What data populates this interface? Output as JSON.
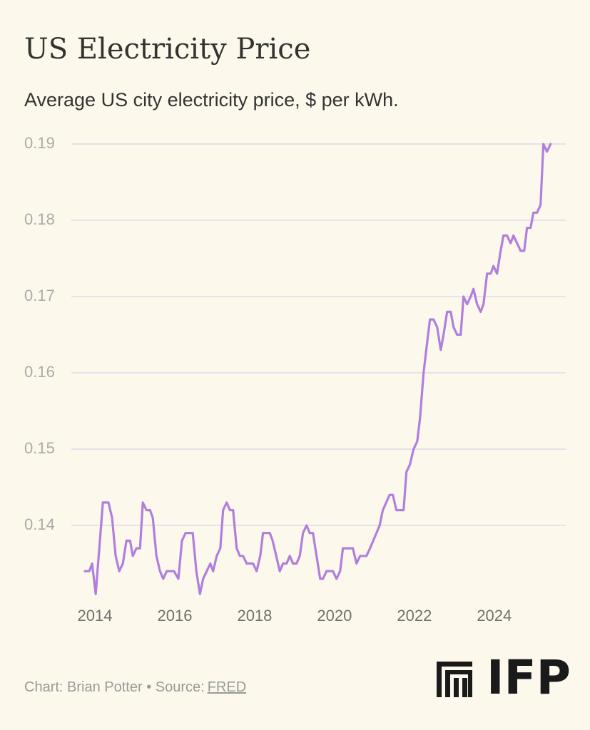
{
  "chart_data": {
    "type": "line",
    "title": "US Electricity Price",
    "subtitle": "Average US city electricity price, $ per kWh.",
    "x": [
      2013.75,
      2013.86,
      2013.93,
      2014.02,
      2014.11,
      2014.2,
      2014.34,
      2014.43,
      2014.52,
      2014.61,
      2014.7,
      2014.79,
      2014.88,
      2014.95,
      2015.04,
      2015.13,
      2015.2,
      2015.29,
      2015.38,
      2015.45,
      2015.54,
      2015.63,
      2015.71,
      2015.8,
      2015.98,
      2016.09,
      2016.18,
      2016.27,
      2016.45,
      2016.54,
      2016.63,
      2016.71,
      2016.8,
      2016.89,
      2016.96,
      2017.05,
      2017.14,
      2017.21,
      2017.3,
      2017.38,
      2017.46,
      2017.55,
      2017.63,
      2017.71,
      2017.8,
      2017.96,
      2018.05,
      2018.14,
      2018.21,
      2018.38,
      2018.45,
      2018.54,
      2018.63,
      2018.71,
      2018.8,
      2018.88,
      2018.96,
      2019.05,
      2019.13,
      2019.21,
      2019.3,
      2019.38,
      2019.46,
      2019.55,
      2019.64,
      2019.71,
      2019.8,
      2019.96,
      2020.05,
      2020.14,
      2020.21,
      2020.46,
      2020.55,
      2020.64,
      2020.8,
      2020.89,
      2021.13,
      2021.21,
      2021.38,
      2021.46,
      2021.55,
      2021.73,
      2021.8,
      2021.89,
      2021.98,
      2022.07,
      2022.14,
      2022.23,
      2022.32,
      2022.39,
      2022.48,
      2022.57,
      2022.66,
      2022.73,
      2022.82,
      2022.91,
      2022.98,
      2023.07,
      2023.16,
      2023.23,
      2023.32,
      2023.41,
      2023.48,
      2023.57,
      2023.66,
      2023.73,
      2023.82,
      2023.91,
      2023.98,
      2024.07,
      2024.16,
      2024.23,
      2024.32,
      2024.41,
      2024.48,
      2024.57,
      2024.66,
      2024.75,
      2024.82,
      2024.91,
      2024.98,
      2025.07,
      2025.16,
      2025.23,
      2025.32,
      2025.41
    ],
    "series": [
      {
        "color": "#b07fde",
        "values": [
          0.134,
          0.134,
          0.135,
          0.131,
          0.137,
          0.143,
          0.143,
          0.141,
          0.136,
          0.134,
          0.135,
          0.138,
          0.138,
          0.136,
          0.137,
          0.137,
          0.143,
          0.142,
          0.142,
          0.141,
          0.136,
          0.134,
          0.133,
          0.134,
          0.134,
          0.133,
          0.138,
          0.139,
          0.139,
          0.134,
          0.131,
          0.133,
          0.134,
          0.135,
          0.134,
          0.136,
          0.137,
          0.142,
          0.143,
          0.142,
          0.142,
          0.137,
          0.136,
          0.136,
          0.135,
          0.135,
          0.134,
          0.136,
          0.139,
          0.139,
          0.138,
          0.136,
          0.134,
          0.135,
          0.135,
          0.136,
          0.135,
          0.135,
          0.136,
          0.139,
          0.14,
          0.139,
          0.139,
          0.136,
          0.133,
          0.133,
          0.134,
          0.134,
          0.133,
          0.134,
          0.137,
          0.137,
          0.135,
          0.136,
          0.136,
          0.137,
          0.14,
          0.142,
          0.144,
          0.144,
          0.142,
          0.142,
          0.147,
          0.148,
          0.15,
          0.151,
          0.154,
          0.16,
          0.164,
          0.167,
          0.167,
          0.166,
          0.163,
          0.165,
          0.168,
          0.168,
          0.166,
          0.165,
          0.165,
          0.17,
          0.169,
          0.17,
          0.171,
          0.169,
          0.168,
          0.169,
          0.173,
          0.173,
          0.174,
          0.173,
          0.176,
          0.178,
          0.178,
          0.177,
          0.178,
          0.177,
          0.176,
          0.176,
          0.179,
          0.179,
          0.181,
          0.181,
          0.182,
          0.19,
          0.189,
          0.19
        ]
      }
    ],
    "xlim": [
      2013.41,
      2025.79
    ],
    "xticks": [
      2014,
      2016,
      2018,
      2020,
      2022,
      2024
    ],
    "ylim": [
      0.13,
      0.19
    ],
    "yticks": [
      0.14,
      0.15,
      0.16,
      0.17,
      0.18,
      0.19
    ],
    "grid": true
  },
  "footer": {
    "credit": "Chart: Brian Potter",
    "separator": "•",
    "source_label": "Source:",
    "source_link": "FRED",
    "logo": "IFP"
  }
}
